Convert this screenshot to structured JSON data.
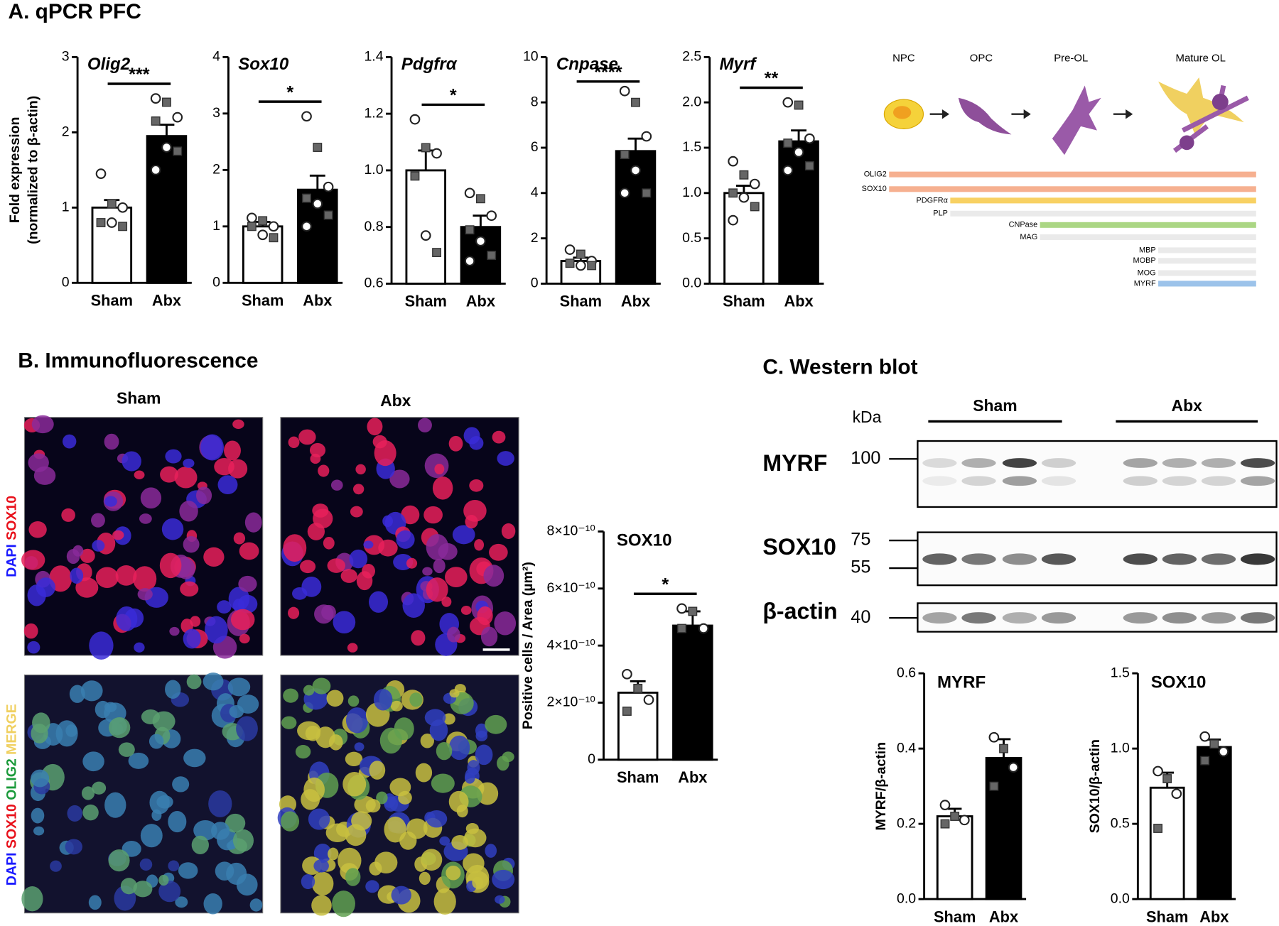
{
  "figure": {
    "panel_a_title": "A. qPCR PFC",
    "panel_b_title": "B. Immunofluorescence",
    "panel_c_title": "C. Western blot"
  },
  "diagram": {
    "stages": [
      "NPC",
      "OPC",
      "Pre-OL",
      "Mature OL"
    ],
    "markers": [
      "OLIG2",
      "SOX10",
      "PDGFRα",
      "PLP",
      "CNPase",
      "MAG",
      "MBP",
      "MOBP",
      "MOG",
      "MYRF"
    ]
  },
  "immuno": {
    "columns": [
      "Sham",
      "Abx"
    ],
    "rows": [
      [
        "DAPI",
        "SOX10"
      ],
      [
        "DAPI",
        "SOX10",
        "OLIG2",
        "MERGE"
      ]
    ]
  },
  "western": {
    "kda": "kDa",
    "groups": [
      "Sham",
      "Abx"
    ],
    "proteins": [
      "MYRF",
      "SOX10",
      "β-actin"
    ],
    "markers": [
      "100",
      "75",
      "55",
      "40"
    ]
  },
  "chart_data": [
    {
      "type": "bar",
      "title": "Olig2",
      "categories": [
        "Sham",
        "Abx"
      ],
      "values": [
        1.0,
        1.95
      ],
      "errors": [
        0.1,
        0.15
      ],
      "points": [
        [
          1.45,
          1.05,
          1.0,
          0.8,
          0.8,
          0.75
        ],
        [
          2.45,
          2.4,
          2.2,
          2.15,
          1.8,
          1.75,
          1.5
        ]
      ],
      "colors": [
        "#ffffff",
        "#000000"
      ],
      "ylim": [
        0,
        3
      ],
      "yticks": [
        0,
        1,
        2,
        3
      ],
      "annotation": "***",
      "ylabel": [
        "Fold expression",
        "(normalized to β-actin)"
      ]
    },
    {
      "type": "bar",
      "title": "Sox10",
      "categories": [
        "Sham",
        "Abx"
      ],
      "values": [
        1.0,
        1.65
      ],
      "errors": [
        0.08,
        0.25
      ],
      "points": [
        [
          1.15,
          1.1,
          1.0,
          1.0,
          0.85,
          0.8
        ],
        [
          2.95,
          2.4,
          1.7,
          1.5,
          1.4,
          1.2,
          1.0
        ]
      ],
      "colors": [
        "#ffffff",
        "#000000"
      ],
      "ylim": [
        0,
        4
      ],
      "yticks": [
        0,
        1,
        2,
        3,
        4
      ],
      "annotation": "*"
    },
    {
      "type": "bar",
      "title": "Pdgfrα",
      "categories": [
        "Sham",
        "Abx"
      ],
      "values": [
        1.0,
        0.8
      ],
      "errors": [
        0.07,
        0.04
      ],
      "points": [
        [
          1.18,
          1.08,
          1.06,
          0.98,
          0.77,
          0.71
        ],
        [
          0.92,
          0.9,
          0.84,
          0.79,
          0.75,
          0.7,
          0.68
        ]
      ],
      "colors": [
        "#ffffff",
        "#000000"
      ],
      "ylim": [
        0.6,
        1.4
      ],
      "yticks": [
        0.6,
        0.8,
        {
          "value": 1.0,
          "label": "1.0"
        },
        1.2,
        1.4
      ],
      "annotation": "*"
    },
    {
      "type": "bar",
      "title": "Cnpase",
      "categories": [
        "Sham",
        "Abx"
      ],
      "values": [
        1.0,
        5.85
      ],
      "errors": [
        0.15,
        0.55
      ],
      "points": [
        [
          1.5,
          1.3,
          1.0,
          0.9,
          0.8,
          0.8
        ],
        [
          8.5,
          8.0,
          6.5,
          5.7,
          5.0,
          4.0,
          4.0
        ]
      ],
      "colors": [
        "#ffffff",
        "#000000"
      ],
      "ylim": [
        0,
        10
      ],
      "yticks": [
        0,
        2,
        4,
        6,
        8,
        10
      ],
      "annotation": "****"
    },
    {
      "type": "bar",
      "title": "Myrf",
      "categories": [
        "Sham",
        "Abx"
      ],
      "values": [
        1.0,
        1.57
      ],
      "errors": [
        0.08,
        0.12
      ],
      "points": [
        [
          1.35,
          1.2,
          1.1,
          1.0,
          0.95,
          0.85,
          0.7
        ],
        [
          2.0,
          1.97,
          1.6,
          1.55,
          1.45,
          1.3,
          1.25
        ]
      ],
      "colors": [
        "#ffffff",
        "#000000"
      ],
      "ylim": [
        0,
        2.5
      ],
      "yticks": [
        {
          "value": 0,
          "label": "0.0"
        },
        0.5,
        {
          "value": 1,
          "label": "1.0"
        },
        1.5,
        {
          "value": 2,
          "label": "2.0"
        },
        2.5
      ],
      "annotation": "**"
    },
    {
      "type": "bar",
      "title": "SOX10",
      "categories": [
        "Sham",
        "Abx"
      ],
      "values": [
        2.35e-10,
        4.7e-10
      ],
      "errors": [
        4e-11,
        5e-11
      ],
      "points": [
        [
          3e-10,
          2.5e-10,
          2.1e-10,
          1.7e-10
        ],
        [
          5.3e-10,
          5.2e-10,
          4.6e-10,
          4.6e-10
        ]
      ],
      "colors": [
        "#ffffff",
        "#000000"
      ],
      "ylim": [
        0,
        8e-10
      ],
      "yticks": [
        0,
        {
          "value": 2e-10,
          "label": "2×10⁻¹⁰"
        },
        {
          "value": 4e-10,
          "label": "4×10⁻¹⁰"
        },
        {
          "value": 6e-10,
          "label": "6×10⁻¹⁰"
        },
        {
          "value": 8e-10,
          "label": "8×10⁻¹⁰"
        }
      ],
      "annotation": "*",
      "ylabel": [
        "Positive cells / Area (µm²)"
      ]
    },
    {
      "type": "bar",
      "title": "MYRF",
      "categories": [
        "Sham",
        "Abx"
      ],
      "values": [
        0.22,
        0.375
      ],
      "errors": [
        0.02,
        0.05
      ],
      "points": [
        [
          0.25,
          0.22,
          0.21,
          0.2
        ],
        [
          0.43,
          0.4,
          0.35,
          0.3
        ]
      ],
      "colors": [
        "#ffffff",
        "#000000"
      ],
      "ylim": [
        0,
        0.6
      ],
      "yticks": [
        {
          "value": 0,
          "label": "0.0"
        },
        0.2,
        0.4,
        0.6
      ],
      "ylabel": [
        "MYRF/β-actin"
      ]
    },
    {
      "type": "bar",
      "title": "SOX10",
      "categories": [
        "Sham",
        "Abx"
      ],
      "values": [
        0.74,
        1.01
      ],
      "errors": [
        0.1,
        0.05
      ],
      "points": [
        [
          0.85,
          0.8,
          0.7,
          0.47
        ],
        [
          1.08,
          1.03,
          0.98,
          0.92
        ]
      ],
      "colors": [
        "#ffffff",
        "#000000"
      ],
      "ylim": [
        0,
        1.5
      ],
      "yticks": [
        {
          "value": 0,
          "label": "0.0"
        },
        0.5,
        {
          "value": 1,
          "label": "1.0"
        },
        1.5
      ],
      "ylabel": [
        "SOX10/β-actin"
      ]
    }
  ]
}
